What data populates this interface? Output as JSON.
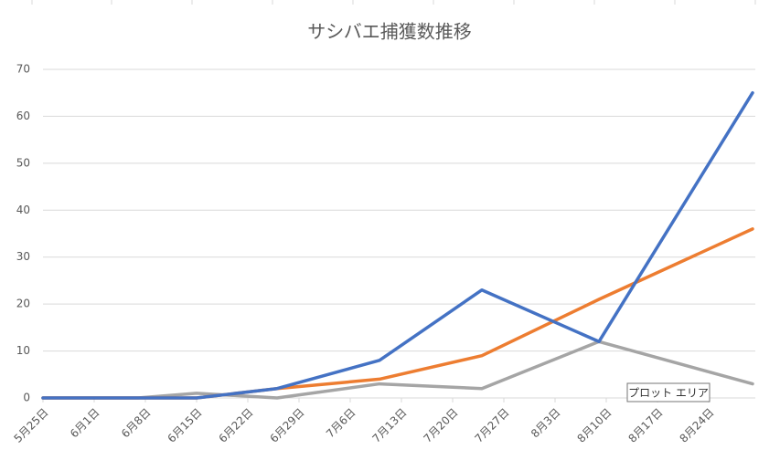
{
  "chart_data": {
    "type": "line",
    "title": "サシバエ捕獲数推移",
    "x": [
      "5月25日",
      "6月7日",
      "6月15日",
      "6月26日",
      "7月10日",
      "7月24日",
      "8月9日",
      "8月30日"
    ],
    "series": [
      {
        "color": "#4472c4",
        "values": [
          0,
          0,
          0,
          2,
          8,
          23,
          12,
          65
        ]
      },
      {
        "color": "#ed7d31",
        "values": [
          0,
          0,
          0,
          2,
          4,
          9,
          21,
          36
        ]
      },
      {
        "color": "#a5a5a5",
        "values": [
          0,
          0,
          1,
          0,
          3,
          2,
          12,
          3
        ]
      }
    ],
    "xlim": [
      "5月25日",
      "8月30日"
    ],
    "xticks": [
      "5月25日",
      "6月1日",
      "6月8日",
      "6月15日",
      "6月22日",
      "6月29日",
      "7月6日",
      "7月13日",
      "7月20日",
      "7月27日",
      "8月3日",
      "8月10日",
      "8月17日",
      "8月24日"
    ],
    "ylim": [
      0,
      70
    ],
    "yticks": [
      0,
      10,
      20,
      30,
      40,
      50,
      60,
      70
    ],
    "grid": true,
    "tooltip": "プロット エリア"
  }
}
